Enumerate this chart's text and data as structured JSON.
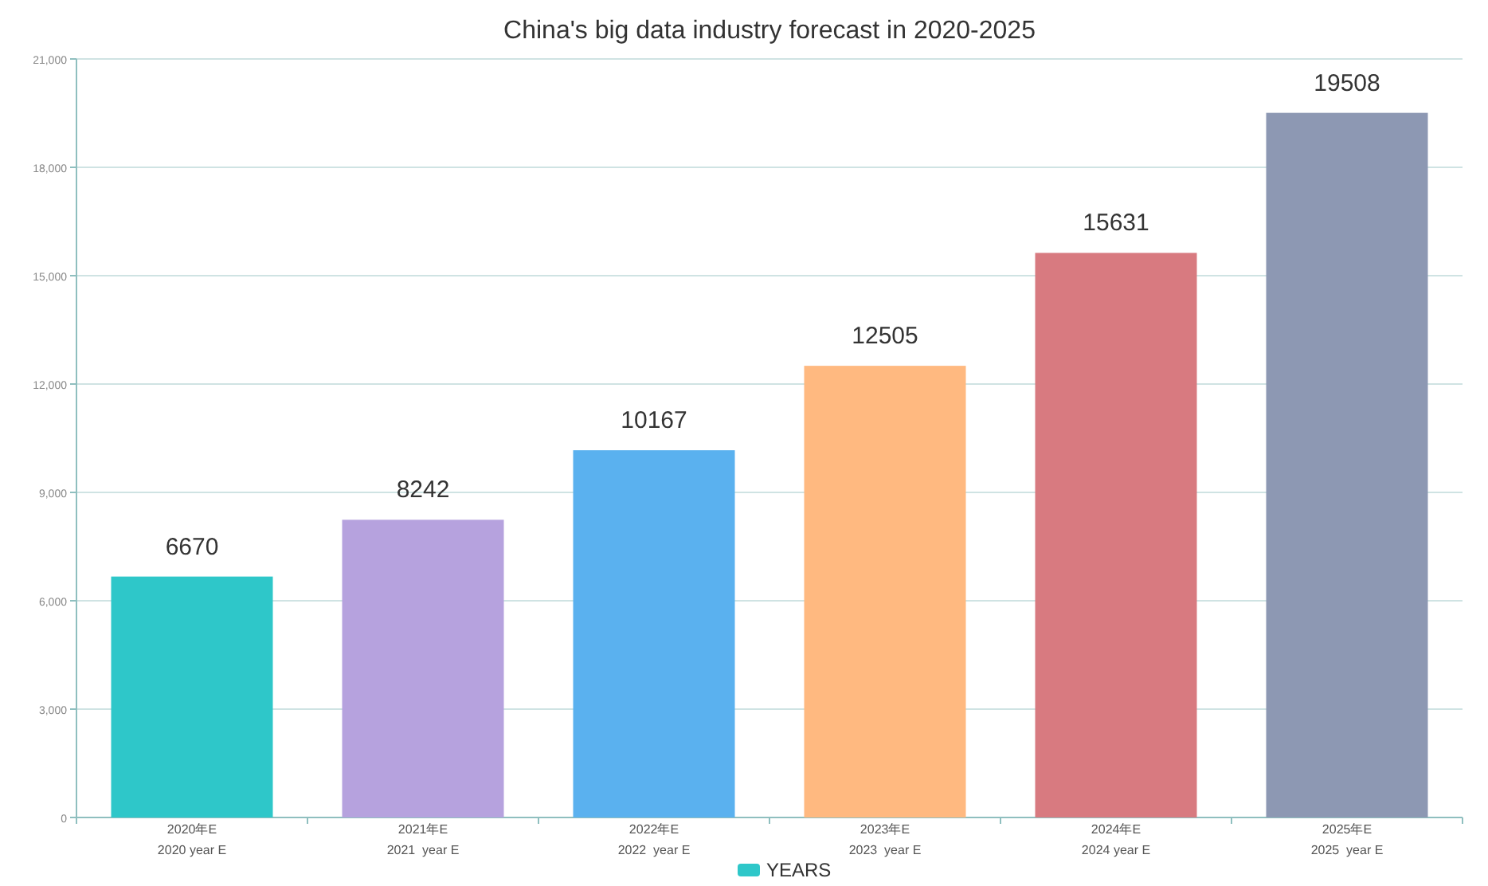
{
  "chart_data": {
    "type": "bar",
    "title": "China's big data industry forecast in 2020-2025",
    "categories": [
      "2020年E\n2020 year E",
      "2021年E\n2021  year E",
      "2022年E\n2022  year E",
      "2023年E\n2023  year E",
      "2024年E\n2024 year E",
      "2025年E\n2025  year E"
    ],
    "series": [
      {
        "name": "YEARS",
        "color": "#2ec7c9",
        "colors": [
          "#2ec7c9",
          "#b6a2de",
          "#5ab1ef",
          "#ffb980",
          "#d87a80",
          "#8d98b3"
        ],
        "values": [
          6670,
          8242,
          10167,
          12505,
          15631,
          19508
        ]
      }
    ],
    "ylim": [
      0,
      21000
    ],
    "yticks": [
      {
        "value": 0,
        "label": "0"
      },
      {
        "value": 3000,
        "label": "3,000"
      },
      {
        "value": 6000,
        "label": "6,000"
      },
      {
        "value": 9000,
        "label": "9,000"
      },
      {
        "value": 12000,
        "label": "12,000"
      },
      {
        "value": 15000,
        "label": "15,000"
      },
      {
        "value": 18000,
        "label": "18,000"
      },
      {
        "value": 21000,
        "label": "21,000"
      }
    ],
    "grid": "y",
    "legend": "bottom",
    "data_labels": true
  }
}
